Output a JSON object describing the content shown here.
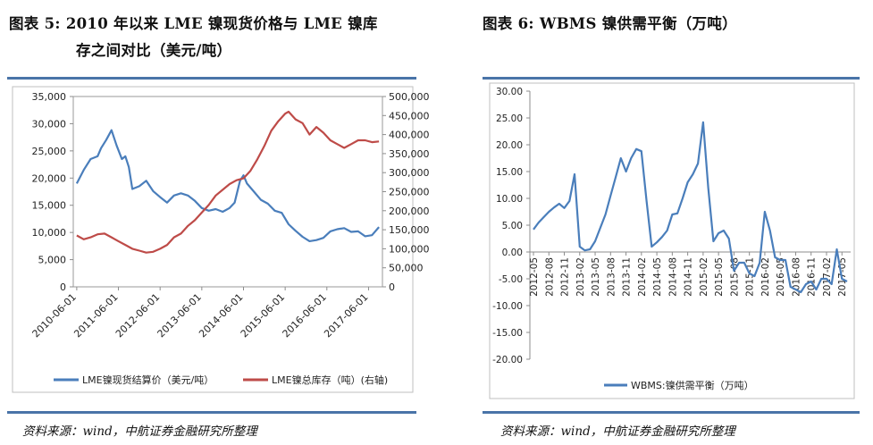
{
  "left_title": {
    "line1": "图表 5:  2010 年以来 LME 镍现货价格与 LME 镍库",
    "line2": "存之间对比（美元/吨）"
  },
  "right_title": "图表 6:   WBMS 镍供需平衡（万吨）",
  "left_footer": "资料来源：wind，中航证券金融研究所整理",
  "right_footer": "资料来源：wind，中航证券金融研究所整理",
  "colors": {
    "price": "#4a7ebb",
    "stock": "#be4b48",
    "balance": "#4a7ebb",
    "rule": "#4a74a8"
  },
  "chart_data": [
    {
      "type": "line",
      "title": "",
      "x_ticks": [
        "2010-06-01",
        "2011-06-01",
        "2012-06-01",
        "2013-06-01",
        "2014-06-01",
        "2015-06-01",
        "2016-06-01",
        "2017-06-01"
      ],
      "y_left_ticks": [
        "0",
        "5,000",
        "10,000",
        "15,000",
        "20,000",
        "25,000",
        "30,000",
        "35,000"
      ],
      "y_right_ticks": [
        "0",
        "50,000",
        "100,000",
        "150,000",
        "200,000",
        "250,000",
        "300,000",
        "350,000",
        "400,000",
        "450,000",
        "500,000"
      ],
      "ylim_left": [
        0,
        35000
      ],
      "ylim_right": [
        0,
        500000
      ],
      "grid": false,
      "legend_position": "bottom",
      "series": [
        {
          "name": "LME镍现货结算价（美元/吨）",
          "axis": "left",
          "x": [
            "2010-06-01",
            "2010-08-01",
            "2010-10-01",
            "2010-12-01",
            "2011-01-01",
            "2011-02-15",
            "2011-04-01",
            "2011-05-15",
            "2011-07-01",
            "2011-08-01",
            "2011-09-01",
            "2011-10-01",
            "2011-12-01",
            "2012-02-01",
            "2012-04-01",
            "2012-06-01",
            "2012-08-01",
            "2012-10-01",
            "2012-12-01",
            "2013-02-01",
            "2013-04-01",
            "2013-06-01",
            "2013-08-01",
            "2013-10-01",
            "2013-12-01",
            "2014-02-01",
            "2014-03-15",
            "2014-05-01",
            "2014-06-01",
            "2014-07-01",
            "2014-09-01",
            "2014-11-01",
            "2015-01-01",
            "2015-03-01",
            "2015-05-01",
            "2015-07-01",
            "2015-09-01",
            "2015-11-01",
            "2016-01-01",
            "2016-03-01",
            "2016-05-01",
            "2016-07-01",
            "2016-09-01",
            "2016-11-01",
            "2017-01-01",
            "2017-03-01",
            "2017-05-01",
            "2017-07-01",
            "2017-09-01"
          ],
          "values": [
            19000,
            21500,
            23500,
            24000,
            25500,
            27000,
            28800,
            26000,
            23500,
            24000,
            22000,
            18000,
            18500,
            19500,
            17600,
            16500,
            15500,
            16800,
            17200,
            16800,
            15800,
            14500,
            14000,
            14300,
            13800,
            14500,
            15500,
            19500,
            20500,
            19000,
            17500,
            16000,
            15300,
            14000,
            13600,
            11500,
            10300,
            9200,
            8400,
            8600,
            9000,
            10200,
            10600,
            10800,
            10100,
            10200,
            9300,
            9500,
            11000
          ]
        },
        {
          "name": "LME镍总库存（吨）(右轴)",
          "axis": "right",
          "x": [
            "2010-06-01",
            "2010-08-01",
            "2010-10-01",
            "2010-12-01",
            "2011-02-01",
            "2011-04-01",
            "2011-06-01",
            "2011-08-01",
            "2011-10-01",
            "2011-12-01",
            "2012-02-01",
            "2012-04-01",
            "2012-06-01",
            "2012-08-01",
            "2012-10-01",
            "2012-12-01",
            "2013-02-01",
            "2013-04-01",
            "2013-06-01",
            "2013-08-01",
            "2013-10-01",
            "2013-12-01",
            "2014-02-01",
            "2014-04-01",
            "2014-06-01",
            "2014-08-01",
            "2014-10-01",
            "2014-12-01",
            "2015-02-01",
            "2015-04-01",
            "2015-06-01",
            "2015-07-01",
            "2015-09-01",
            "2015-11-01",
            "2016-01-01",
            "2016-03-01",
            "2016-05-01",
            "2016-07-01",
            "2016-09-01",
            "2016-11-01",
            "2017-01-01",
            "2017-03-01",
            "2017-05-01",
            "2017-07-01",
            "2017-09-01"
          ],
          "values": [
            135000,
            125000,
            130000,
            138000,
            140000,
            130000,
            120000,
            110000,
            100000,
            95000,
            90000,
            92000,
            100000,
            110000,
            130000,
            140000,
            160000,
            175000,
            195000,
            215000,
            240000,
            255000,
            270000,
            280000,
            285000,
            305000,
            335000,
            370000,
            410000,
            435000,
            455000,
            460000,
            440000,
            430000,
            400000,
            420000,
            405000,
            385000,
            375000,
            365000,
            375000,
            385000,
            385000,
            380000,
            382000
          ]
        }
      ]
    },
    {
      "type": "line",
      "title": "",
      "x_ticks": [
        "2012-05",
        "2012-08",
        "2012-11",
        "2013-02",
        "2013-05",
        "2013-08",
        "2013-11",
        "2014-02",
        "2014-05",
        "2014-08",
        "2014-11",
        "2015-02",
        "2015-05",
        "2015-08",
        "2015-11",
        "2016-02",
        "2016-05",
        "2016-08",
        "2016-11",
        "2017-02",
        "2017-05"
      ],
      "y_ticks": [
        "30.00",
        "25.00",
        "20.00",
        "15.00",
        "10.00",
        "5.00",
        "0.00",
        "-5.00",
        "-10.00",
        "-15.00",
        "-20.00"
      ],
      "ylim": [
        -20,
        30
      ],
      "grid": false,
      "legend_position": "bottom",
      "series": [
        {
          "name": "WBMS:镍供需平衡（万吨）",
          "x": [
            "2012-05",
            "2012-06",
            "2012-07",
            "2012-08",
            "2012-09",
            "2012-10",
            "2012-11",
            "2012-12",
            "2013-01",
            "2013-02",
            "2013-03",
            "2013-04",
            "2013-05",
            "2013-06",
            "2013-07",
            "2013-08",
            "2013-09",
            "2013-10",
            "2013-11",
            "2013-12",
            "2014-01",
            "2014-02",
            "2014-03",
            "2014-04",
            "2014-05",
            "2014-06",
            "2014-07",
            "2014-08",
            "2014-09",
            "2014-10",
            "2014-11",
            "2014-12",
            "2015-01",
            "2015-02",
            "2015-03",
            "2015-04",
            "2015-05",
            "2015-06",
            "2015-07",
            "2015-08",
            "2015-09",
            "2015-10",
            "2015-11",
            "2015-12",
            "2016-01",
            "2016-02",
            "2016-03",
            "2016-04",
            "2016-05",
            "2016-06",
            "2016-07",
            "2016-08",
            "2016-09",
            "2016-10",
            "2016-11",
            "2016-12",
            "2017-01",
            "2017-02",
            "2017-03",
            "2017-04",
            "2017-05",
            "2017-06"
          ],
          "values": [
            4.2,
            5.5,
            6.5,
            7.5,
            8.3,
            9.0,
            8.2,
            9.5,
            14.5,
            1.0,
            0.3,
            0.5,
            2.0,
            4.5,
            7.0,
            10.5,
            14.0,
            17.5,
            15.0,
            17.5,
            19.2,
            18.8,
            9.5,
            1.0,
            1.8,
            2.8,
            4.0,
            7.0,
            7.2,
            10.0,
            13.0,
            14.5,
            16.5,
            24.2,
            12.0,
            2.0,
            3.5,
            4.0,
            2.5,
            -3.5,
            -2.0,
            -2.0,
            -4.0,
            -4.5,
            -2.0,
            7.5,
            4.0,
            -1.0,
            -1.5,
            -1.5,
            -6.5,
            -7.0,
            -7.5,
            -6.0,
            -5.5,
            -7.0,
            -5.0,
            -5.0,
            -6.0,
            0.5,
            -5.0,
            -5.5
          ]
        }
      ]
    }
  ]
}
